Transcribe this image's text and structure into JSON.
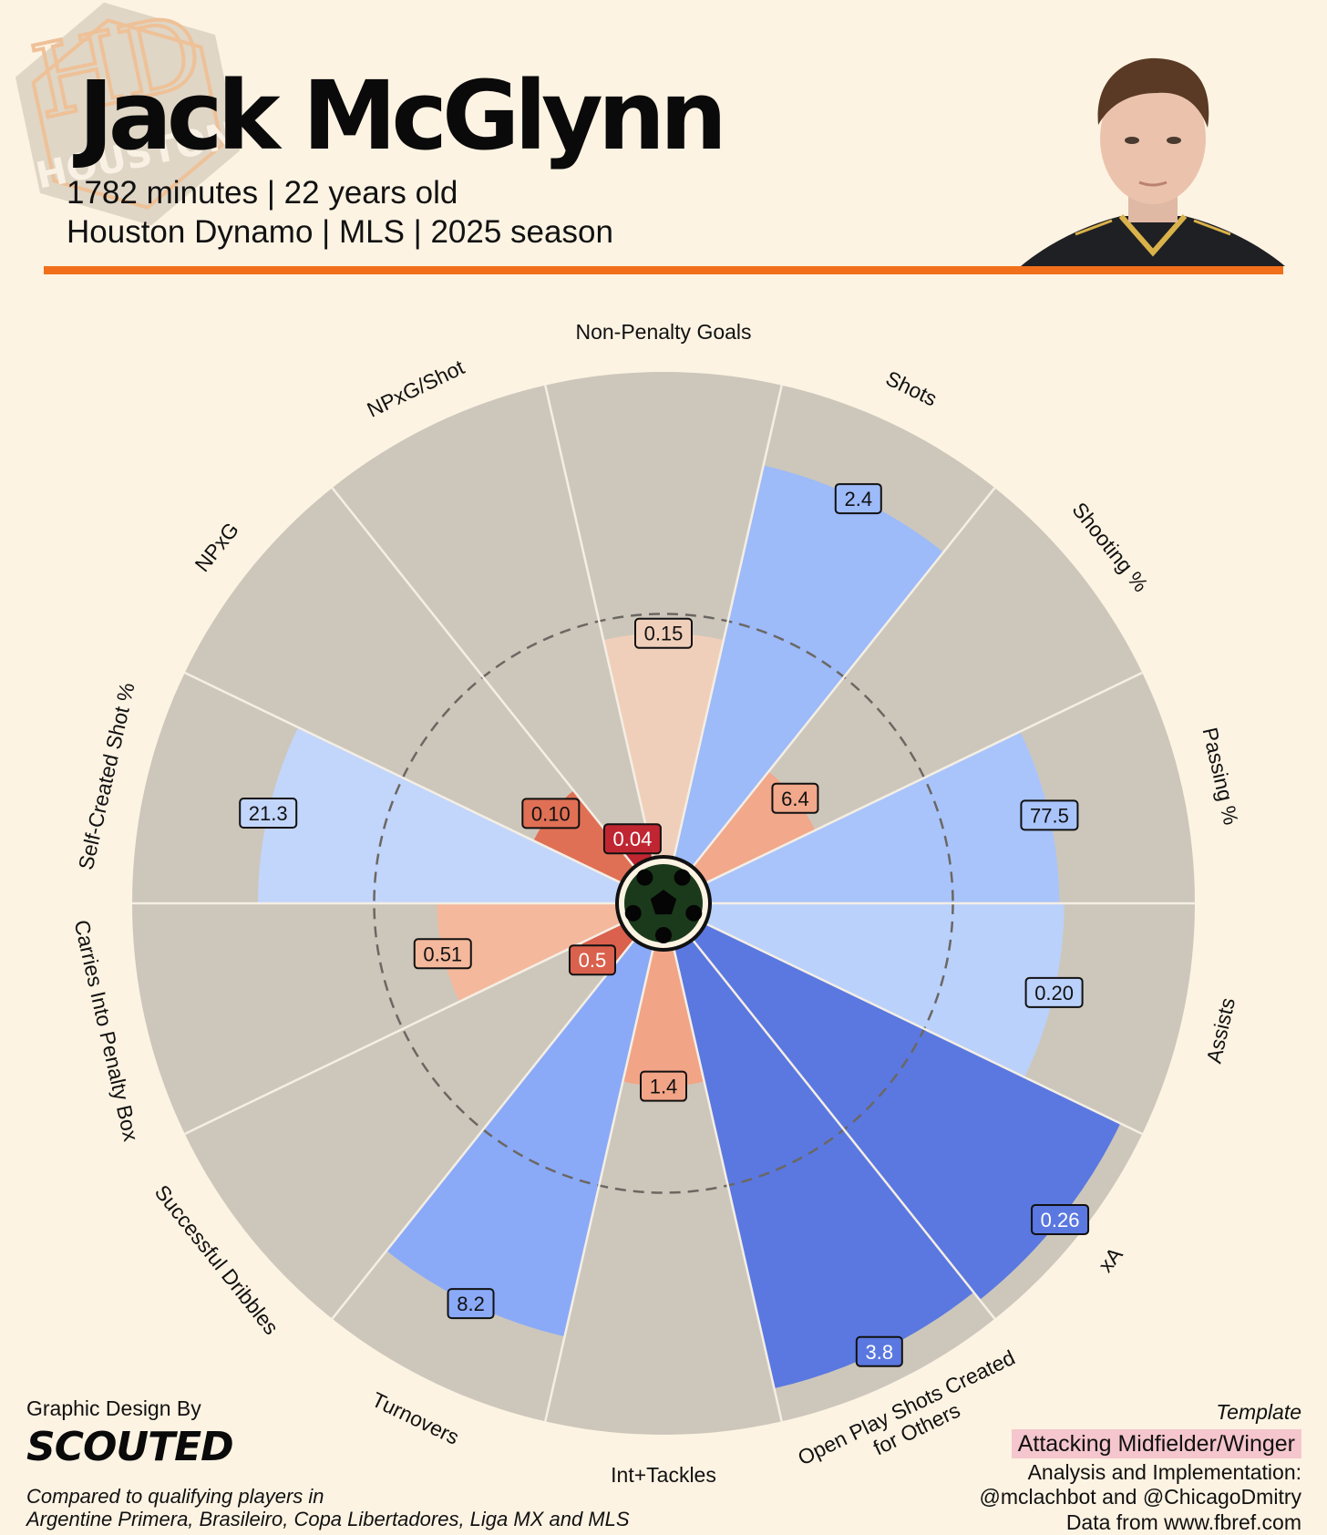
{
  "header": {
    "player_name": "Jack McGlynn",
    "line1": "1782 minutes | 22 years old",
    "line2": "Houston Dynamo | MLS | 2025 season",
    "logo_text": "HOUSTON",
    "accent_color": "#f16f1a"
  },
  "footer": {
    "credit_label": "Graphic Design By",
    "brand": "SCOUTED",
    "compare_line1": "Compared to qualifying players in",
    "compare_line2": "Argentine Primera, Brasileiro, Copa Libertadores, Liga MX and MLS",
    "template_label": "Template",
    "template_name": "Attacking Midfielder/Winger",
    "analysis_line1": "Analysis and Implementation:",
    "analysis_line2": "@mclachbot and @ChicagoDmitry",
    "data_source": "Data from www.fbref.com"
  },
  "chart_data": {
    "type": "radar",
    "note_scale": "percentile 0-100, dashed ring = 50th percentile",
    "categories": [
      {
        "label": "Non-Penalty Goals",
        "value": "0.15",
        "percentile": 46,
        "color": "#f0cfba"
      },
      {
        "label": "Shots",
        "value": "2.4",
        "percentile": 83,
        "color": "#9dbaf9"
      },
      {
        "label": "Shooting %",
        "value": "6.4",
        "percentile": 25,
        "color": "#f1a88b"
      },
      {
        "label": "Passing %",
        "value": "77.5",
        "percentile": 72,
        "color": "#a9c4fb"
      },
      {
        "label": "Assists",
        "value": "0.20",
        "percentile": 73,
        "color": "#bad1fb"
      },
      {
        "label": "xA",
        "value": "0.26",
        "percentile": 95,
        "color": "#5a78e0"
      },
      {
        "label": "Open Play Shots Created\nfor Others",
        "value": "3.8",
        "percentile": 93,
        "color": "#5a78e0"
      },
      {
        "label": "Int+Tackles",
        "value": "1.4",
        "percentile": 28,
        "color": "#f2a487"
      },
      {
        "label": "Turnovers",
        "value": "8.2",
        "percentile": 82,
        "color": "#8aaaf8"
      },
      {
        "label": "Successful Dribbles",
        "value": "0.5",
        "percentile": 9,
        "color": "#d9614d"
      },
      {
        "label": "Carries Into Penalty Box",
        "value": "0.51",
        "percentile": 37,
        "color": "#f4b89c"
      },
      {
        "label": "Self-Created Shot %",
        "value": "21.3",
        "percentile": 74,
        "color": "#c2d5fb"
      },
      {
        "label": "NPxG",
        "value": "0.10",
        "percentile": 20,
        "color": "#e07055"
      },
      {
        "label": "NPxG/Shot",
        "value": "0.04",
        "percentile": 5,
        "color": "#c02632"
      }
    ],
    "background_color": "#cdc7bb",
    "center_icon": "soccer-ball-icon"
  }
}
